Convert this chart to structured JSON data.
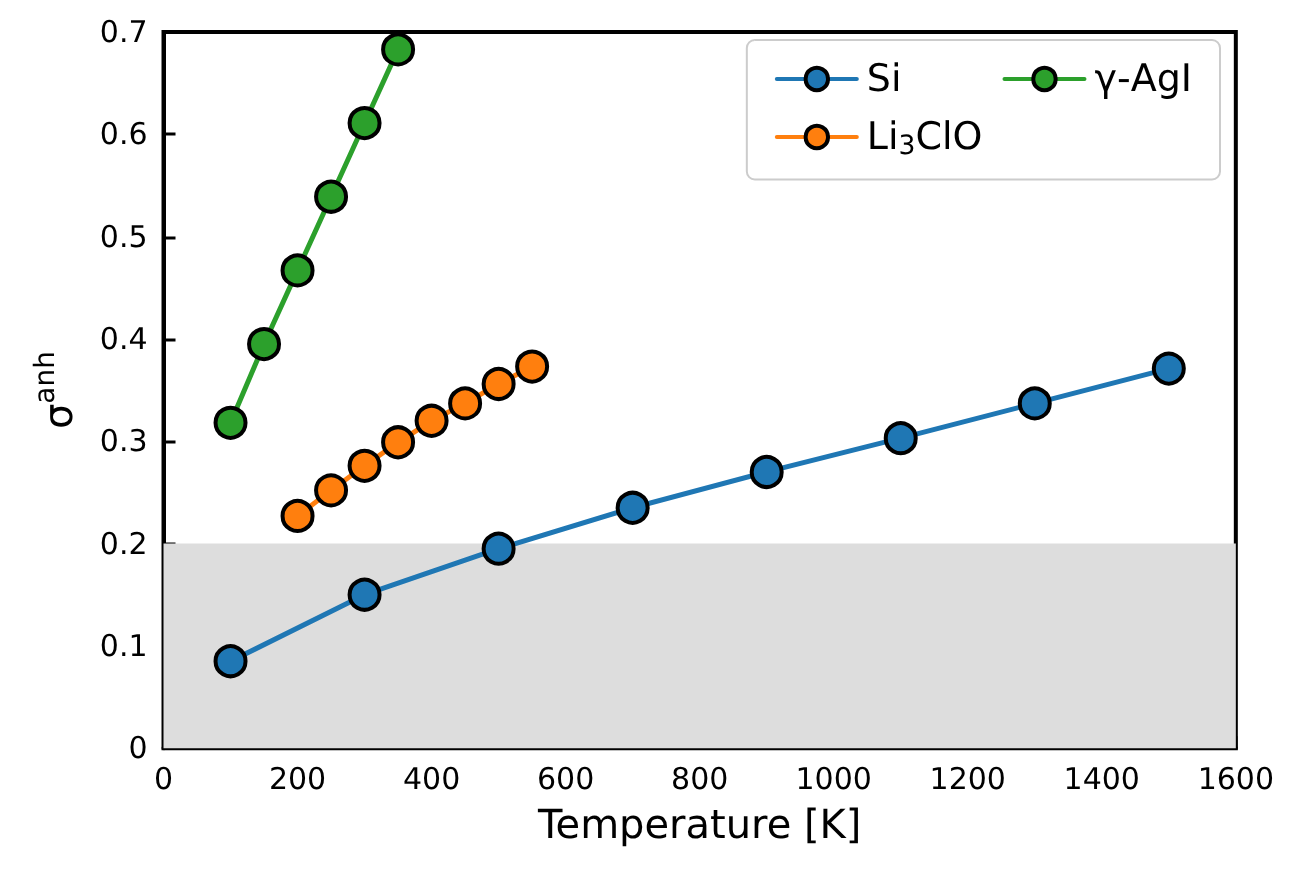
{
  "chart_data": {
    "type": "line",
    "xlabel": "Temperature [K]",
    "ylabel": "σ$^{anh}$",
    "xlim": [
      0,
      1600
    ],
    "xticks": [
      0,
      200,
      400,
      600,
      800,
      1000,
      1200,
      1400,
      1600
    ],
    "ylim": [
      0,
      0.7
    ],
    "yticks": [
      0,
      0.1,
      0.2,
      0.3,
      0.4,
      0.5,
      0.6,
      0.7
    ],
    "series": [
      {
        "name": "Si",
        "color": "#1f77b4",
        "x": [
          100,
          300,
          500,
          700,
          900,
          1100,
          1300,
          1500
        ],
        "values": [
          0.085,
          0.15,
          0.195,
          0.235,
          0.27,
          0.303,
          0.337,
          0.371
        ]
      },
      {
        "name": "Li$_{3}$ClO",
        "color": "#ff7f0e",
        "x": [
          200,
          250,
          300,
          350,
          400,
          450,
          500,
          550
        ],
        "values": [
          0.227,
          0.252,
          0.276,
          0.299,
          0.32,
          0.337,
          0.356,
          0.373
        ]
      },
      {
        "name": "γ-AgI",
        "color": "#2ca02c",
        "x": [
          100,
          150,
          200,
          250,
          300,
          350
        ],
        "values": [
          0.318,
          0.395,
          0.467,
          0.539,
          0.611,
          0.683
        ]
      }
    ],
    "bands": [
      {
        "axis": "y",
        "from": 0,
        "to": 0.2,
        "color": "#dddddd"
      }
    ],
    "legend": "top right",
    "grid": false,
    "marker": "circle",
    "line_style": "solid"
  }
}
